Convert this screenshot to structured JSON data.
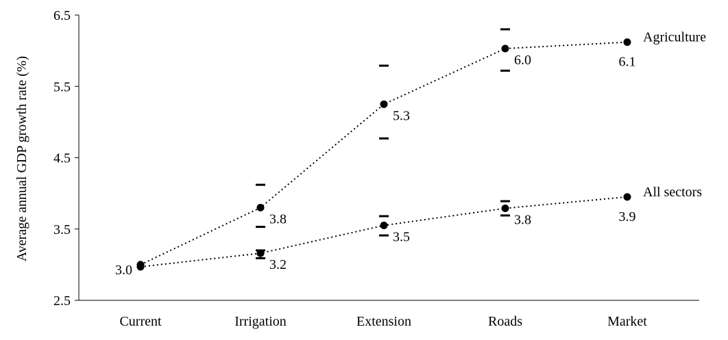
{
  "chart_data": {
    "type": "line",
    "title": "",
    "xlabel": "",
    "ylabel": "Average annual GDP growth rate (%)",
    "ylim": [
      2.5,
      6.5
    ],
    "yticks": [
      "2.5",
      "3.5",
      "4.5",
      "5.5",
      "6.5"
    ],
    "categories": [
      "Current",
      "Irrigation",
      "Extension",
      "Roads",
      "Market"
    ],
    "grid": false,
    "legend": "none",
    "series": [
      {
        "name": "Agriculture",
        "values": [
          3.0,
          3.8,
          5.25,
          6.03,
          6.12
        ],
        "value_labels": [
          "",
          "3.8",
          "5.3",
          "6.0",
          "6.1"
        ],
        "range_low": [
          null,
          3.53,
          4.77,
          5.72,
          null
        ],
        "range_high": [
          null,
          4.12,
          5.79,
          6.3,
          null
        ]
      },
      {
        "name": "All sectors",
        "values": [
          2.97,
          3.16,
          3.55,
          3.79,
          3.95
        ],
        "value_labels": [
          "3.0",
          "3.2",
          "3.5",
          "3.8",
          "3.9"
        ],
        "range_low": [
          null,
          3.09,
          3.41,
          3.69,
          null
        ],
        "range_high": [
          null,
          3.2,
          3.68,
          3.89,
          null
        ]
      }
    ]
  }
}
